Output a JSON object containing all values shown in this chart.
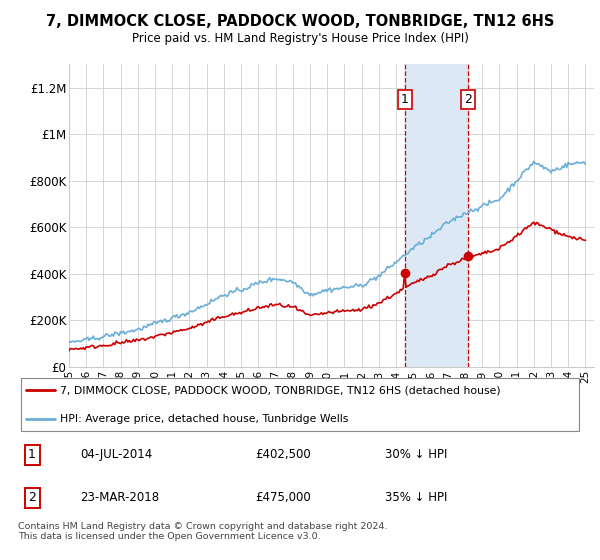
{
  "title": "7, DIMMOCK CLOSE, PADDOCK WOOD, TONBRIDGE, TN12 6HS",
  "subtitle": "Price paid vs. HM Land Registry's House Price Index (HPI)",
  "hpi_label": "HPI: Average price, detached house, Tunbridge Wells",
  "property_label": "7, DIMMOCK CLOSE, PADDOCK WOOD, TONBRIDGE, TN12 6HS (detached house)",
  "hpi_color": "#6baed6",
  "property_color": "#cc0000",
  "sale1_date": "04-JUL-2014",
  "sale1_price": 402500,
  "sale1_pct": "30% ↓ HPI",
  "sale2_date": "23-MAR-2018",
  "sale2_price": 475000,
  "sale2_pct": "35% ↓ HPI",
  "footnote": "Contains HM Land Registry data © Crown copyright and database right 2024.\nThis data is licensed under the Open Government Licence v3.0.",
  "ylim": [
    0,
    1300000
  ],
  "yticks": [
    0,
    200000,
    400000,
    600000,
    800000,
    1000000,
    1200000
  ],
  "ytick_labels": [
    "£0",
    "£200K",
    "£400K",
    "£600K",
    "£800K",
    "£1M",
    "£1.2M"
  ],
  "background_color": "#ffffff",
  "shaded_region_color": "#dce9f5",
  "vline_color": "#cc0000",
  "hpi_key_years": [
    1995,
    1996,
    1997,
    1998,
    1999,
    2000,
    2001,
    2002,
    2003,
    2004,
    2005,
    2006,
    2007,
    2008,
    2009,
    2010,
    2011,
    2012,
    2013,
    2014,
    2015,
    2016,
    2017,
    2018,
    2019,
    2020,
    2021,
    2022,
    2023,
    2024,
    2025
  ],
  "hpi_key_vals": [
    105000,
    115000,
    130000,
    145000,
    160000,
    185000,
    210000,
    235000,
    270000,
    310000,
    330000,
    360000,
    380000,
    365000,
    310000,
    330000,
    340000,
    350000,
    390000,
    450000,
    510000,
    560000,
    620000,
    660000,
    690000,
    720000,
    800000,
    880000,
    840000,
    870000,
    880000
  ],
  "prop_key_years": [
    1995,
    1996,
    1997,
    1998,
    1999,
    2000,
    2001,
    2002,
    2003,
    2004,
    2005,
    2006,
    2007,
    2008,
    2009,
    2010,
    2011,
    2012,
    2013,
    2014,
    2015,
    2016,
    2017,
    2018,
    2019,
    2020,
    2021,
    2022,
    2023,
    2024,
    2025
  ],
  "prop_key_vals": [
    75000,
    82000,
    92000,
    103000,
    113000,
    130000,
    148000,
    165000,
    190000,
    218000,
    232000,
    253000,
    267000,
    257000,
    218000,
    232000,
    239000,
    246000,
    274000,
    316000,
    358000,
    392000,
    436000,
    464000,
    485000,
    506000,
    563000,
    619000,
    591000,
    560000,
    545000
  ]
}
